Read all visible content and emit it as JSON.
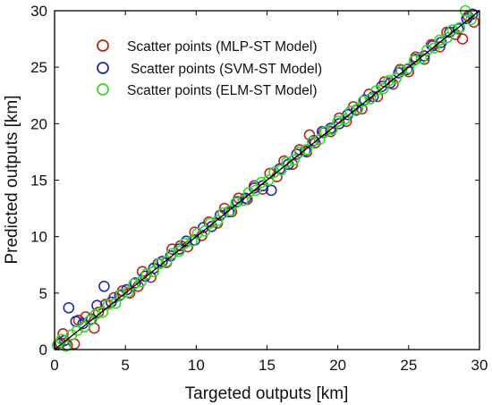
{
  "chart_data": {
    "type": "scatter",
    "xlabel": "Targeted outputs [km]",
    "ylabel": "Predicted outputs [km]",
    "xlim": [
      0,
      30
    ],
    "ylim": [
      0,
      30
    ],
    "xticks": [
      0,
      5,
      10,
      15,
      20,
      25,
      30
    ],
    "yticks": [
      0,
      5,
      10,
      15,
      20,
      25,
      30
    ],
    "grid": false,
    "legend_position": "top-left",
    "reference_line": {
      "x": [
        0,
        30
      ],
      "y": [
        0,
        30
      ],
      "color": "#000000"
    },
    "series": [
      {
        "name": "Scatter points (MLP-ST Model)",
        "marker": "open-circle",
        "color": "#b5281c",
        "points": [
          [
            0.4,
            0.6
          ],
          [
            0.6,
            1.4
          ],
          [
            0.9,
            0.4
          ],
          [
            1.4,
            0.5
          ],
          [
            1.7,
            2.6
          ],
          [
            2.2,
            2.9
          ],
          [
            2.8,
            1.9
          ],
          [
            3.1,
            3.3
          ],
          [
            3.6,
            4.0
          ],
          [
            4.2,
            4.6
          ],
          [
            4.8,
            5.2
          ],
          [
            5.3,
            5.0
          ],
          [
            5.9,
            5.6
          ],
          [
            6.2,
            6.9
          ],
          [
            6.8,
            6.4
          ],
          [
            7.3,
            7.6
          ],
          [
            7.9,
            7.7
          ],
          [
            8.3,
            8.9
          ],
          [
            8.9,
            9.2
          ],
          [
            9.4,
            9.1
          ],
          [
            9.9,
            10.4
          ],
          [
            10.4,
            10.1
          ],
          [
            10.9,
            11.3
          ],
          [
            11.5,
            11.2
          ],
          [
            12.0,
            12.5
          ],
          [
            12.5,
            12.2
          ],
          [
            13.0,
            13.4
          ],
          [
            13.6,
            13.3
          ],
          [
            14.1,
            14.5
          ],
          [
            14.7,
            14.2
          ],
          [
            15.2,
            15.6
          ],
          [
            15.7,
            15.3
          ],
          [
            16.2,
            16.7
          ],
          [
            16.8,
            16.4
          ],
          [
            17.3,
            17.7
          ],
          [
            17.8,
            17.5
          ],
          [
            18.0,
            19.0
          ],
          [
            18.4,
            18.3
          ],
          [
            19.0,
            19.2
          ],
          [
            19.5,
            19.3
          ],
          [
            20.1,
            20.5
          ],
          [
            20.6,
            20.2
          ],
          [
            21.1,
            21.5
          ],
          [
            21.7,
            21.3
          ],
          [
            22.2,
            22.6
          ],
          [
            22.8,
            22.4
          ],
          [
            23.3,
            23.7
          ],
          [
            23.9,
            23.5
          ],
          [
            24.4,
            24.8
          ],
          [
            25.0,
            24.6
          ],
          [
            25.5,
            25.9
          ],
          [
            26.1,
            25.7
          ],
          [
            26.6,
            27.0
          ],
          [
            27.2,
            26.8
          ],
          [
            27.7,
            28.1
          ],
          [
            28.3,
            27.9
          ],
          [
            28.8,
            27.5
          ],
          [
            29.2,
            29.5
          ],
          [
            29.6,
            29.0
          ]
        ]
      },
      {
        "name": "Scatter points (SVM-ST Model)",
        "marker": "open-circle",
        "color": "#1c2ab5",
        "points": [
          [
            0.3,
            0.5
          ],
          [
            0.7,
            0.8
          ],
          [
            1.0,
            3.7
          ],
          [
            1.5,
            2.5
          ],
          [
            2.0,
            2.3
          ],
          [
            2.6,
            2.7
          ],
          [
            3.0,
            3.9
          ],
          [
            3.5,
            5.6
          ],
          [
            4.0,
            4.2
          ],
          [
            4.6,
            4.8
          ],
          [
            5.1,
            5.3
          ],
          [
            5.7,
            5.9
          ],
          [
            6.4,
            6.5
          ],
          [
            7.0,
            7.2
          ],
          [
            7.6,
            7.8
          ],
          [
            8.2,
            8.3
          ],
          [
            8.8,
            8.9
          ],
          [
            9.3,
            9.6
          ],
          [
            9.9,
            9.7
          ],
          [
            10.5,
            10.8
          ],
          [
            11.1,
            10.9
          ],
          [
            11.7,
            11.9
          ],
          [
            12.3,
            12.2
          ],
          [
            12.9,
            13.1
          ],
          [
            13.5,
            13.4
          ],
          [
            14.1,
            14.3
          ],
          [
            14.7,
            14.5
          ],
          [
            15.3,
            14.1
          ],
          [
            15.9,
            16.0
          ],
          [
            16.5,
            16.4
          ],
          [
            17.1,
            17.3
          ],
          [
            17.7,
            17.6
          ],
          [
            18.3,
            18.5
          ],
          [
            18.9,
            19.3
          ],
          [
            19.5,
            19.6
          ],
          [
            20.1,
            20.0
          ],
          [
            20.7,
            20.8
          ],
          [
            21.3,
            21.2
          ],
          [
            21.9,
            22.1
          ],
          [
            22.5,
            22.4
          ],
          [
            23.1,
            23.3
          ],
          [
            23.7,
            23.6
          ],
          [
            24.3,
            24.5
          ],
          [
            24.9,
            24.8
          ],
          [
            25.5,
            25.7
          ],
          [
            26.1,
            26.0
          ],
          [
            26.7,
            26.9
          ],
          [
            27.3,
            27.2
          ],
          [
            27.9,
            28.1
          ],
          [
            28.5,
            28.4
          ],
          [
            29.1,
            29.3
          ],
          [
            29.5,
            29.7
          ]
        ]
      },
      {
        "name": "Scatter points (ELM-ST Model)",
        "marker": "open-circle",
        "color": "#3bd62b",
        "points": [
          [
            0.2,
            0.4
          ],
          [
            0.5,
            0.9
          ],
          [
            0.8,
            0.3
          ],
          [
            1.2,
            1.3
          ],
          [
            1.6,
            1.7
          ],
          [
            2.1,
            2.0
          ],
          [
            2.5,
            2.6
          ],
          [
            2.9,
            3.1
          ],
          [
            3.4,
            3.3
          ],
          [
            3.8,
            4.0
          ],
          [
            4.3,
            4.1
          ],
          [
            4.7,
            4.9
          ],
          [
            5.2,
            5.1
          ],
          [
            5.6,
            5.8
          ],
          [
            6.1,
            6.0
          ],
          [
            6.5,
            6.7
          ],
          [
            7.0,
            6.9
          ],
          [
            7.4,
            7.6
          ],
          [
            7.9,
            7.8
          ],
          [
            8.3,
            8.5
          ],
          [
            8.8,
            8.7
          ],
          [
            9.2,
            9.4
          ],
          [
            9.7,
            9.6
          ],
          [
            10.1,
            10.3
          ],
          [
            10.6,
            10.5
          ],
          [
            11.0,
            11.2
          ],
          [
            11.5,
            11.4
          ],
          [
            11.9,
            12.1
          ],
          [
            12.4,
            12.3
          ],
          [
            12.8,
            13.0
          ],
          [
            13.3,
            13.2
          ],
          [
            13.7,
            13.9
          ],
          [
            14.2,
            14.1
          ],
          [
            14.6,
            14.8
          ],
          [
            15.1,
            15.0
          ],
          [
            15.5,
            15.7
          ],
          [
            16.0,
            15.9
          ],
          [
            16.4,
            16.6
          ],
          [
            16.9,
            16.8
          ],
          [
            17.3,
            17.5
          ],
          [
            17.8,
            17.7
          ],
          [
            18.2,
            18.4
          ],
          [
            18.7,
            18.6
          ],
          [
            19.1,
            19.3
          ],
          [
            19.6,
            19.5
          ],
          [
            20.0,
            20.2
          ],
          [
            20.5,
            20.4
          ],
          [
            20.9,
            21.1
          ],
          [
            21.4,
            21.3
          ],
          [
            21.8,
            22.0
          ],
          [
            22.3,
            22.2
          ],
          [
            22.7,
            22.9
          ],
          [
            23.2,
            23.1
          ],
          [
            23.6,
            23.8
          ],
          [
            24.1,
            24.0
          ],
          [
            24.5,
            24.7
          ],
          [
            25.0,
            24.9
          ],
          [
            25.4,
            25.6
          ],
          [
            25.9,
            25.8
          ],
          [
            26.3,
            26.5
          ],
          [
            26.8,
            26.7
          ],
          [
            27.2,
            27.4
          ],
          [
            27.7,
            27.6
          ],
          [
            28.1,
            28.3
          ],
          [
            28.6,
            28.5
          ],
          [
            29.0,
            30.0
          ],
          [
            29.4,
            29.2
          ]
        ]
      }
    ]
  }
}
